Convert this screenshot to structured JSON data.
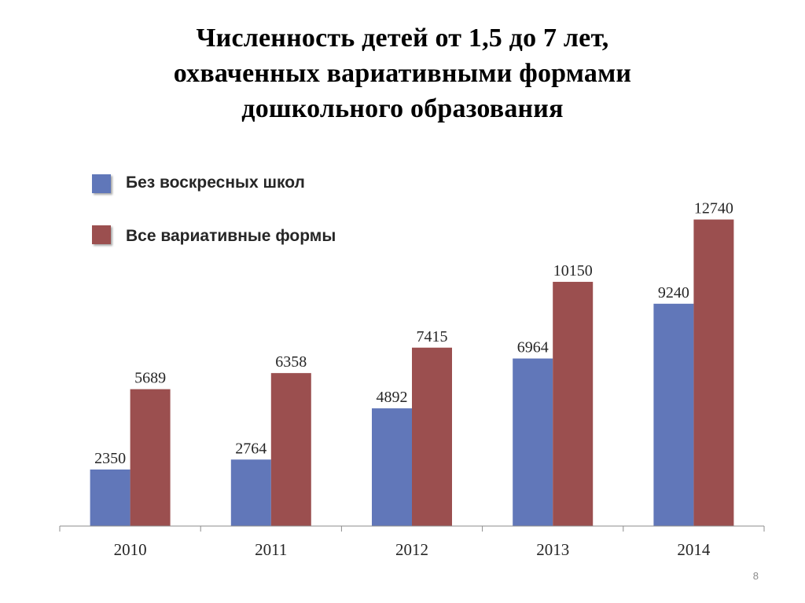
{
  "slide": {
    "title_lines": [
      "Численность детей от 1,5 до 7 лет,",
      "охваченных вариативными формами",
      "дошкольного образования"
    ],
    "page_number": "8"
  },
  "chart_data": {
    "type": "bar",
    "title": "",
    "xlabel": "",
    "ylabel": "",
    "categories": [
      "2010",
      "2011",
      "2012",
      "2013",
      "2014"
    ],
    "series": [
      {
        "name": "Без воскресных школ",
        "color": "#6177b9",
        "values": [
          2350,
          2764,
          4892,
          6964,
          9240
        ]
      },
      {
        "name": "Все вариативные формы",
        "color": "#9b4f4f",
        "values": [
          5689,
          6358,
          7415,
          10150,
          12740
        ]
      }
    ],
    "ylim": [
      0,
      15500
    ],
    "grid": false,
    "y_axis_visible": false,
    "data_labels": true,
    "legend_position": "top-left"
  }
}
